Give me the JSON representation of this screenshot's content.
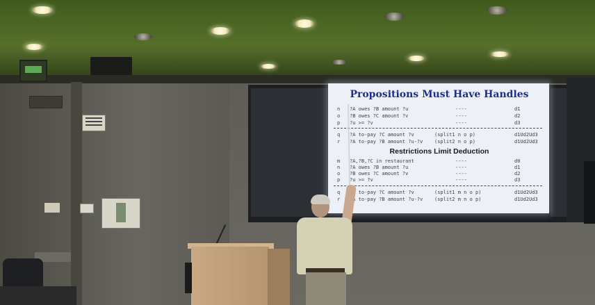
{
  "slide": {
    "title": "Propositions Must Have Handles",
    "block1": [
      {
        "label": "n",
        "text": "?A owes ?B amount ?u",
        "dash": "----",
        "tag": "d1"
      },
      {
        "label": "o",
        "text": "?B owes ?C amount ?v",
        "dash": "----",
        "tag": "d2"
      },
      {
        "label": "p",
        "text": "?u >= ?v",
        "dash": "----",
        "tag": "d3"
      }
    ],
    "block2": [
      {
        "label": "q",
        "text": "?A to-pay ?C amount ?v",
        "split": "(split1 n o p)",
        "tag": "d1Ud2Ud3"
      },
      {
        "label": "r",
        "text": "?A to-pay ?B amount ?u-?v",
        "split": "(split2 n o p)",
        "tag": "d1Ud2Ud3"
      }
    ],
    "subtitle": "Restrictions Limit Deduction",
    "block3": [
      {
        "label": "m",
        "text": "?A,?B,?C in restaurant",
        "dash": "----",
        "tag": "d0"
      },
      {
        "label": "n",
        "text": "?A owes ?B amount ?u",
        "dash": "----",
        "tag": "d1"
      },
      {
        "label": "o",
        "text": "?B owes ?C amount ?v",
        "dash": "----",
        "tag": "d2"
      },
      {
        "label": "p",
        "text": "?u >= ?v",
        "dash": "----",
        "tag": "d3"
      }
    ],
    "block4": [
      {
        "label": "q",
        "text": "?A to-pay ?C amount ?v",
        "split": "(split1 m n o p)",
        "tag": "d1Ud2Ud3"
      },
      {
        "label": "r",
        "text": "?A to-pay ?B amount ?u-?v",
        "split": "(split2 m n o p)",
        "tag": "d1Ud2Ud3"
      }
    ]
  }
}
